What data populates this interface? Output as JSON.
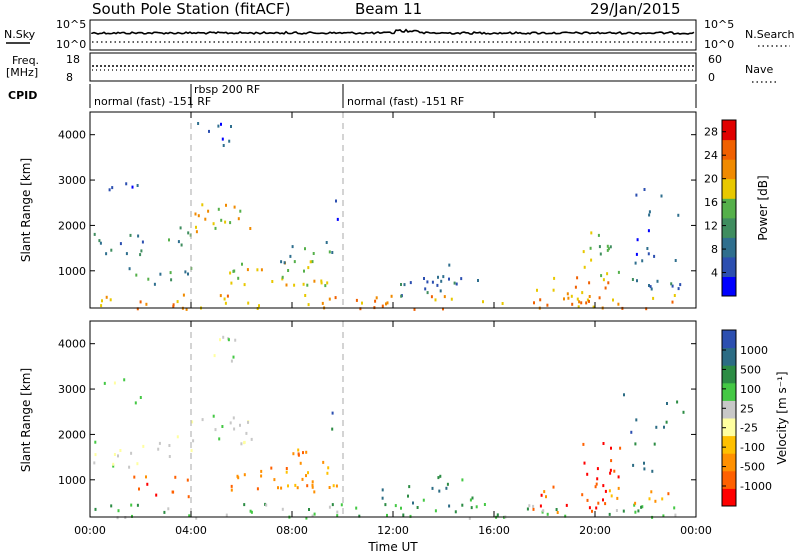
{
  "header": {
    "station": "South Pole Station (fitACF)",
    "beam": "Beam 11",
    "date": "29/Jan/2015"
  },
  "panels": {
    "nsky_label": "N.Sky",
    "nsky_ticks": [
      "10^5",
      "10^0"
    ],
    "nsearch_label": "N.Search",
    "nsearch_ticks": [
      "10^5",
      "10^0"
    ],
    "freq_label_1": "Freq.",
    "freq_label_2": "[MHz]",
    "freq_ticks": [
      "18",
      "8"
    ],
    "nave_label": "Nave",
    "nave_ticks": [
      "60",
      "0"
    ],
    "cpid_label": "CPID",
    "cpid_segments": [
      {
        "label": "normal (fast) -151 RF",
        "start_hour": 0
      },
      {
        "label": "rbsp 200 RF",
        "start_hour": 3.95
      },
      {
        "label": "normal (fast) -151 RF",
        "start_hour": 10.0
      }
    ]
  },
  "colors": {
    "power_scale": [
      "#0000ff",
      "#2c4fb0",
      "#2f6f8e",
      "#3f8d5f",
      "#55b04a",
      "#e8c800",
      "#f08a00",
      "#f06000",
      "#e00000"
    ],
    "velocity_scale": [
      "#ff0000",
      "#ff6000",
      "#ff9000",
      "#ffc000",
      "#ffffa0",
      "#c8c8c8",
      "#44c844",
      "#2c8c44",
      "#2c6c84",
      "#2c4fb0"
    ]
  },
  "chart_data": [
    {
      "type": "heatmap",
      "name": "power",
      "ylabel": "Slant Range [km]",
      "xlabel": "",
      "xlim": [
        0,
        24
      ],
      "ylim": [
        180,
        4500
      ],
      "x_ticks": [
        "00:00",
        "04:00",
        "08:00",
        "12:00",
        "16:00",
        "20:00",
        "00:00"
      ],
      "y_ticks": [
        1000,
        2000,
        3000,
        4000
      ],
      "colorbar_label": "Power [dB]",
      "colorbar_ticks": [
        "4",
        "8",
        "12",
        "16",
        "20",
        "24",
        "28"
      ],
      "colorbar_range": [
        0,
        30
      ]
    },
    {
      "type": "heatmap",
      "name": "velocity",
      "ylabel": "Slant Range [km]",
      "xlabel": "Time UT",
      "xlim": [
        0,
        24
      ],
      "ylim": [
        180,
        4500
      ],
      "x_ticks": [
        "00:00",
        "04:00",
        "08:00",
        "12:00",
        "16:00",
        "20:00",
        "00:00"
      ],
      "y_ticks": [
        1000,
        2000,
        3000,
        4000
      ],
      "colorbar_label": "Velocity [m s⁻¹]",
      "colorbar_ticks": [
        "1000",
        "500",
        "100",
        "25",
        "-25",
        "-100",
        "-500",
        "-1000"
      ]
    }
  ]
}
